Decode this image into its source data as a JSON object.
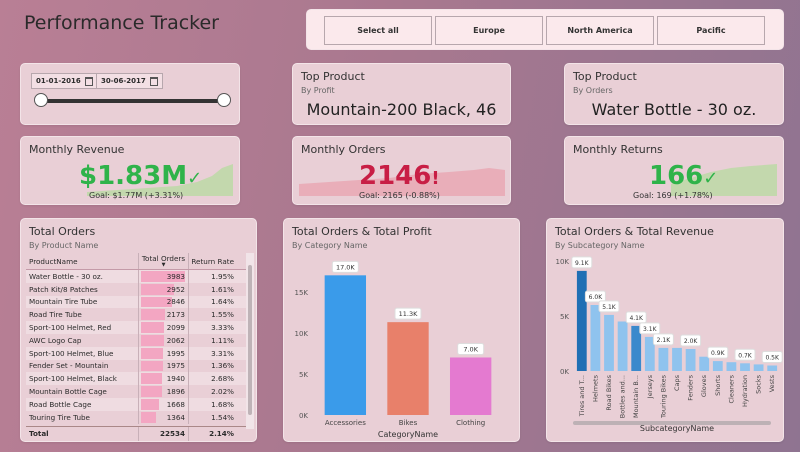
{
  "page_title": "Performance Tracker",
  "region_slicer": {
    "options": [
      "Select all",
      "Europe",
      "North America",
      "Pacific"
    ]
  },
  "date_slicer": {
    "start": "01-01-2016",
    "end": "30-06-2017"
  },
  "top_product_profit": {
    "title": "Top Product",
    "subtitle": "By Profit",
    "value": "Mountain-200 Black, 46"
  },
  "top_product_orders": {
    "title": "Top Product",
    "subtitle": "By Orders",
    "value": "Water Bottle - 30 oz."
  },
  "kpis": [
    {
      "title": "Monthly Revenue",
      "value": "$1.83M",
      "status": "✓",
      "goal": "Goal: $1.77M (+3.31%)",
      "color": "#2fb34a",
      "trend_color": "#bcd9a6"
    },
    {
      "title": "Monthly Orders",
      "value": "2146",
      "status": "!",
      "goal": "Goal: 2165 (-0.88%)",
      "color": "#c81e45",
      "trend_color": "#e9a8b4"
    },
    {
      "title": "Monthly Returns",
      "value": "166",
      "status": "✓",
      "goal": "Goal: 169 (+1.78%)",
      "color": "#2fb34a",
      "trend_color": "#bcd9a6"
    }
  ],
  "orders_table": {
    "title": "Total Orders",
    "subtitle": "By Product Name",
    "columns": [
      "ProductName",
      "Total Orders",
      "Return Rate"
    ],
    "rows": [
      {
        "name": "Water Bottle - 30 oz.",
        "orders": 3983,
        "rate": "1.95%"
      },
      {
        "name": "Patch Kit/8 Patches",
        "orders": 2952,
        "rate": "1.61%"
      },
      {
        "name": "Mountain Tire Tube",
        "orders": 2846,
        "rate": "1.64%"
      },
      {
        "name": "Road Tire Tube",
        "orders": 2173,
        "rate": "1.55%"
      },
      {
        "name": "Sport-100 Helmet, Red",
        "orders": 2099,
        "rate": "3.33%"
      },
      {
        "name": "AWC Logo Cap",
        "orders": 2062,
        "rate": "1.11%"
      },
      {
        "name": "Sport-100 Helmet, Blue",
        "orders": 1995,
        "rate": "3.31%"
      },
      {
        "name": "Fender Set - Mountain",
        "orders": 1975,
        "rate": "1.36%"
      },
      {
        "name": "Sport-100 Helmet, Black",
        "orders": 1940,
        "rate": "2.68%"
      },
      {
        "name": "Mountain Bottle Cage",
        "orders": 1896,
        "rate": "2.02%"
      },
      {
        "name": "Road Bottle Cage",
        "orders": 1668,
        "rate": "1.68%"
      },
      {
        "name": "Touring Tire Tube",
        "orders": 1364,
        "rate": "1.54%"
      }
    ],
    "total": {
      "label": "Total",
      "orders": "22534",
      "rate": "2.14%"
    }
  },
  "chart_data": [
    {
      "type": "bar",
      "title": "Total Orders & Total Profit",
      "subtitle": "By Category Name",
      "xlabel": "CategoryName",
      "categories": [
        "Accessories",
        "Bikes",
        "Clothing"
      ],
      "values": [
        17000,
        11300,
        7000
      ],
      "labels": [
        "17.0K",
        "11.3K",
        "7.0K"
      ],
      "colors": [
        "#3a9bea",
        "#e8806a",
        "#e47ad0"
      ],
      "yticks": [
        "0K",
        "5K",
        "10K",
        "15K"
      ],
      "ylim": [
        0,
        18500
      ]
    },
    {
      "type": "bar",
      "title": "Total Orders & Total Revenue",
      "subtitle": "By Subcategory Name",
      "xlabel": "SubcategoryName",
      "categories": [
        "Tires and T...",
        "Helmets",
        "Road Bikes",
        "Bottles and...",
        "Mountain B...",
        "Jerseys",
        "Touring Bikes",
        "Caps",
        "Fenders",
        "Gloves",
        "Shorts",
        "Cleaners",
        "Hydration",
        "Socks",
        "Vests"
      ],
      "values": [
        9100,
        6000,
        5100,
        4500,
        4100,
        3100,
        2100,
        2100,
        2000,
        1300,
        900,
        800,
        700,
        600,
        500
      ],
      "labels": [
        "9.1K",
        "6.0K",
        "5.1K",
        "",
        "4.1K",
        "3.1K",
        "2.1K",
        "",
        "2.0K",
        "",
        "0.9K",
        "",
        "0.7K",
        "",
        "0.5K"
      ],
      "colors": [
        "#1f6fb4",
        "#8fc3ee",
        "#8fc3ee",
        "#8fc3ee",
        "#3b89cc",
        "#8fc3ee",
        "#8fc3ee",
        "#8fc3ee",
        "#8fc3ee",
        "#8fc3ee",
        "#8fc3ee",
        "#8fc3ee",
        "#8fc3ee",
        "#8fc3ee",
        "#8fc3ee"
      ],
      "yticks": [
        "0K",
        "5K",
        "10K"
      ],
      "ylim": [
        0,
        10000
      ]
    }
  ]
}
